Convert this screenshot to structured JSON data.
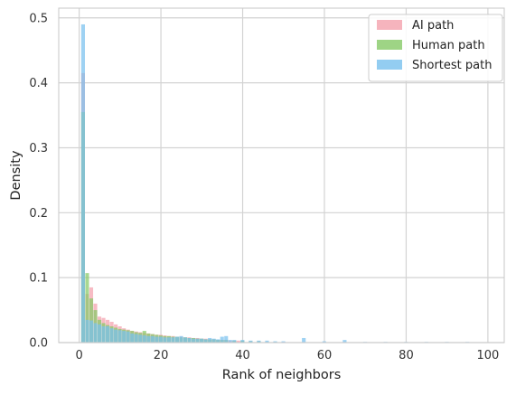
{
  "chart_data": {
    "type": "bar",
    "subtype": "overlaid-histogram",
    "title": "",
    "xlabel": "Rank of neighbors",
    "ylabel": "Density",
    "xlim": [
      -5,
      104
    ],
    "ylim": [
      0,
      0.515
    ],
    "xticks": [
      0,
      20,
      40,
      60,
      80,
      100
    ],
    "yticks": [
      0.0,
      0.1,
      0.2,
      0.3,
      0.4,
      0.5
    ],
    "xtick_labels": [
      "0",
      "20",
      "40",
      "60",
      "80",
      "100"
    ],
    "ytick_labels": [
      "0.0",
      "0.1",
      "0.2",
      "0.3",
      "0.4",
      "0.5"
    ],
    "grid": true,
    "legend_position": "top-right",
    "bin_width": 1,
    "series": [
      {
        "name": "AI path",
        "color": "#f4a1ad",
        "bins": [
          [
            1,
            0.415
          ],
          [
            2,
            0.075
          ],
          [
            3,
            0.085
          ],
          [
            4,
            0.06
          ],
          [
            5,
            0.04
          ],
          [
            6,
            0.038
          ],
          [
            7,
            0.035
          ],
          [
            8,
            0.032
          ],
          [
            9,
            0.028
          ],
          [
            10,
            0.025
          ],
          [
            11,
            0.022
          ],
          [
            12,
            0.02
          ],
          [
            13,
            0.018
          ],
          [
            14,
            0.017
          ],
          [
            15,
            0.016
          ],
          [
            16,
            0.015
          ],
          [
            17,
            0.014
          ],
          [
            18,
            0.013
          ],
          [
            19,
            0.012
          ],
          [
            20,
            0.012
          ],
          [
            21,
            0.011
          ],
          [
            22,
            0.01
          ],
          [
            23,
            0.01
          ],
          [
            24,
            0.009
          ],
          [
            25,
            0.009
          ],
          [
            26,
            0.008
          ],
          [
            27,
            0.008
          ],
          [
            28,
            0.007
          ],
          [
            29,
            0.007
          ],
          [
            30,
            0.006
          ],
          [
            31,
            0.006
          ],
          [
            32,
            0.005
          ],
          [
            33,
            0.005
          ],
          [
            34,
            0.004
          ],
          [
            35,
            0.004
          ],
          [
            36,
            0.004
          ],
          [
            37,
            0.003
          ],
          [
            38,
            0.003
          ],
          [
            39,
            0.003
          ],
          [
            40,
            0.002
          ],
          [
            42,
            0.002
          ],
          [
            44,
            0.002
          ],
          [
            46,
            0.001
          ],
          [
            48,
            0.001
          ],
          [
            50,
            0.001
          ]
        ]
      },
      {
        "name": "Human path",
        "color": "#86c966",
        "bins": [
          [
            1,
            0.355
          ],
          [
            2,
            0.107
          ],
          [
            3,
            0.068
          ],
          [
            4,
            0.05
          ],
          [
            5,
            0.035
          ],
          [
            6,
            0.03
          ],
          [
            7,
            0.027
          ],
          [
            8,
            0.025
          ],
          [
            9,
            0.023
          ],
          [
            10,
            0.021
          ],
          [
            11,
            0.02
          ],
          [
            12,
            0.019
          ],
          [
            13,
            0.018
          ],
          [
            14,
            0.016
          ],
          [
            15,
            0.015
          ],
          [
            16,
            0.018
          ],
          [
            17,
            0.014
          ],
          [
            18,
            0.013
          ],
          [
            19,
            0.012
          ],
          [
            20,
            0.011
          ],
          [
            21,
            0.01
          ],
          [
            22,
            0.01
          ],
          [
            23,
            0.009
          ],
          [
            24,
            0.009
          ],
          [
            25,
            0.008
          ],
          [
            26,
            0.008
          ],
          [
            27,
            0.007
          ],
          [
            28,
            0.007
          ],
          [
            29,
            0.006
          ],
          [
            30,
            0.006
          ],
          [
            31,
            0.005
          ],
          [
            32,
            0.005
          ],
          [
            33,
            0.005
          ],
          [
            34,
            0.004
          ],
          [
            35,
            0.004
          ],
          [
            36,
            0.004
          ],
          [
            38,
            0.003
          ],
          [
            40,
            0.003
          ],
          [
            42,
            0.002
          ],
          [
            44,
            0.002
          ],
          [
            46,
            0.001
          ],
          [
            48,
            0.001
          ]
        ]
      },
      {
        "name": "Shortest path",
        "color": "#78c0ee",
        "bins": [
          [
            1,
            0.49
          ],
          [
            2,
            0.035
          ],
          [
            3,
            0.034
          ],
          [
            4,
            0.03
          ],
          [
            5,
            0.028
          ],
          [
            6,
            0.025
          ],
          [
            7,
            0.025
          ],
          [
            8,
            0.022
          ],
          [
            9,
            0.02
          ],
          [
            10,
            0.019
          ],
          [
            11,
            0.018
          ],
          [
            12,
            0.017
          ],
          [
            13,
            0.014
          ],
          [
            14,
            0.013
          ],
          [
            15,
            0.012
          ],
          [
            16,
            0.011
          ],
          [
            17,
            0.01
          ],
          [
            18,
            0.01
          ],
          [
            19,
            0.009
          ],
          [
            20,
            0.009
          ],
          [
            21,
            0.008
          ],
          [
            22,
            0.008
          ],
          [
            23,
            0.008
          ],
          [
            24,
            0.009
          ],
          [
            25,
            0.01
          ],
          [
            26,
            0.008
          ],
          [
            27,
            0.007
          ],
          [
            28,
            0.006
          ],
          [
            29,
            0.006
          ],
          [
            30,
            0.006
          ],
          [
            31,
            0.005
          ],
          [
            32,
            0.007
          ],
          [
            33,
            0.006
          ],
          [
            34,
            0.005
          ],
          [
            35,
            0.009
          ],
          [
            36,
            0.01
          ],
          [
            37,
            0.004
          ],
          [
            38,
            0.004
          ],
          [
            40,
            0.004
          ],
          [
            42,
            0.003
          ],
          [
            44,
            0.003
          ],
          [
            46,
            0.003
          ],
          [
            48,
            0.002
          ],
          [
            50,
            0.002
          ],
          [
            55,
            0.007
          ],
          [
            60,
            0.002
          ],
          [
            65,
            0.004
          ],
          [
            70,
            0.001
          ],
          [
            75,
            0.001
          ],
          [
            80,
            0.001
          ],
          [
            85,
            0.001
          ],
          [
            90,
            0.001
          ],
          [
            95,
            0.001
          ]
        ]
      }
    ]
  }
}
